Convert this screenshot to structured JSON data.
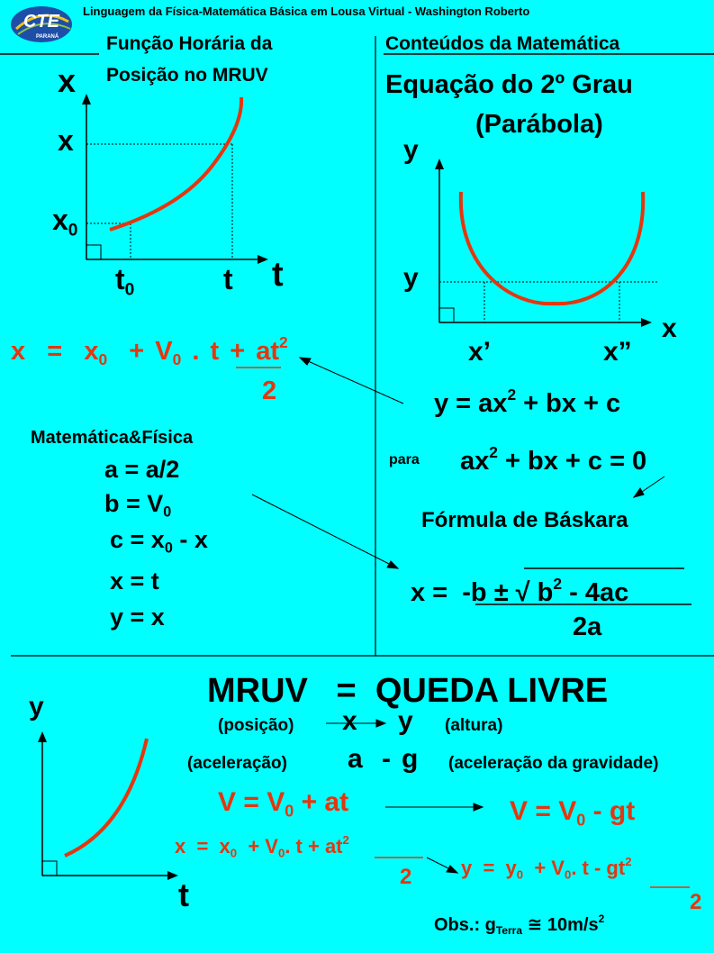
{
  "header": {
    "title": "Linguagem da Física-Matemática Básica em Lousa Virtual - Washington Roberto"
  },
  "logo": {
    "text": "CTE",
    "subtext": "PARANÁ"
  },
  "left_panel": {
    "title_line1": "Função Horária da",
    "title_line2": "Posição no MRUV",
    "graph": {
      "y_axis": "x",
      "x_axis": "t",
      "y_mark": "x",
      "y0_mark": "x",
      "y0_sub": "0",
      "t0_mark": "t",
      "t0_sub": "0",
      "t_mark": "t"
    },
    "equation": {
      "x": "x",
      "eq": "=",
      "x0": "x",
      "x0_sub": "0",
      "plus1": "+",
      "v0": "V",
      "v0_sub": "0",
      "dot": ". t",
      "plus2": "+",
      "at": "at",
      "at_sup": "2",
      "denominator": "2"
    }
  },
  "right_panel": {
    "title": "Conteúdos da Matemática",
    "subtitle1": "Equação do 2º Grau",
    "subtitle2": "(Parábola)",
    "graph": {
      "y_axis": "y",
      "x_axis": "x",
      "y_mark": "y",
      "x1_mark": "x’",
      "x2_mark": "x”"
    },
    "equation": {
      "lhs": "y  =  ax",
      "sup": "2",
      "rhs": " + bx + c"
    },
    "para": "para",
    "para_eq": {
      "a": "ax",
      "sup": "2",
      "b": " + bx + c = 0"
    },
    "baskara_title": "Fórmula de Báskara",
    "baskara": {
      "lhs": "x  =",
      "num1": "-b",
      "pm": "±",
      "sqrt": "√",
      "b2": "b",
      "b2_sup": "2",
      "rest": " - 4ac",
      "den": "2a"
    }
  },
  "mapping": {
    "title": "Matemática&Física",
    "a": "a = a/2",
    "b": "b = V",
    "b_sub": "0",
    "c": "c = x",
    "c_sub": "0",
    "c_rest": " - x",
    "x": "x = t",
    "y": "y = x"
  },
  "bottom": {
    "title": "MRUV   =  QUEDA LIVRE",
    "posicao": "(posição)",
    "pos_x": "x",
    "pos_y": "y",
    "altura": "(altura)",
    "aceleracao": "(aceleração)",
    "acc_a": "a",
    "acc_dash": "-",
    "acc_g": "g",
    "gravidade": "(aceleração da gravidade)",
    "graph": {
      "y_axis": "y",
      "x_axis": "t"
    },
    "v_eq": {
      "text": "V = V",
      "sub": "0",
      "rest": " + at"
    },
    "v_eq2": {
      "text": "V = V",
      "sub": "0",
      "rest": " - gt"
    },
    "x_eq": {
      "a": "x  =  x",
      "sub1": "0",
      "b": "  + V",
      "sub2": "0",
      "c": ". t + at",
      "sup": "2",
      "den": "2"
    },
    "y_eq": {
      "a": "y  =  y",
      "sub1": "0",
      "b": "  + V",
      "sub2": "0",
      "c": ". t - gt",
      "sup": "2",
      "den": "2"
    },
    "obs": {
      "a": "Obs.: g",
      "sub": "Terra",
      "approx": "≅",
      "b": " 10m/s",
      "sup": "2"
    }
  },
  "colors": {
    "background": "#00FFFF",
    "accent": "#E5360E"
  }
}
